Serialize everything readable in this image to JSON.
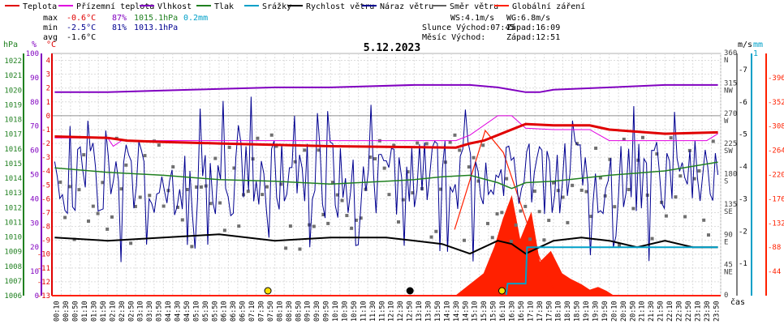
{
  "legend": [
    {
      "label": "Teplota",
      "color": "#e00000"
    },
    {
      "label": "Přízemní teplota",
      "color": "#e000e0"
    },
    {
      "label": "Vlhkost",
      "color": "#8000c0"
    },
    {
      "label": "Tlak",
      "color": "#208020"
    },
    {
      "label": "Srážky",
      "color": "#00a0c8"
    },
    {
      "label": "Rychlost větru",
      "color": "#000000"
    },
    {
      "label": "Náraz větru",
      "color": "#000090"
    },
    {
      "label": "Směr větru",
      "color": "#606060"
    },
    {
      "label": "Globální záření",
      "color": "#ff2000"
    }
  ],
  "stats": {
    "max": {
      "label": "max",
      "temp": "-0.6°C",
      "hum": "87%",
      "press": "1015.1hPa",
      "rain": "0.2mm"
    },
    "min": {
      "label": "min",
      "temp": "-2.5°C",
      "hum": "81%",
      "press": "1013.1hPa"
    },
    "avg": {
      "label": "avg",
      "temp": "-1.6°C"
    }
  },
  "info": {
    "ws": "WS:4.1m/s",
    "wg": "WG:6.8m/s",
    "sun": "Slunce Východ:07:45",
    "sun_set": "Západ:16:09",
    "moon": "Měsíc  Východ:",
    "moon_set": "Západ:12:51"
  },
  "title": "5.12.2023",
  "axes": {
    "hpa_unit": "hPa",
    "pct_unit": "%",
    "c_unit": "°C",
    "ms_unit": "m/s",
    "mm_unit": "mm",
    "cas_label": "čas",
    "hpa_ticks": [
      "1022",
      "1021",
      "1020",
      "1019",
      "1018",
      "1017",
      "1016",
      "1015",
      "1014",
      "1013",
      "1012",
      "1011",
      "1010",
      "1009",
      "1008",
      "1007",
      "1006"
    ],
    "pct_ticks": [
      "100",
      "90",
      "80",
      "70",
      "60",
      "50",
      "40",
      "30",
      "20",
      "10",
      "0"
    ],
    "c_ticks": [
      "4",
      "3",
      "2",
      "1",
      "0",
      "-1",
      "-2",
      "-3",
      "-4",
      "-5",
      "-6",
      "-7",
      "-8",
      "-9",
      "-10",
      "-11",
      "-12",
      "-13"
    ],
    "dir_ticks": [
      {
        "deg": "360",
        "name": "N"
      },
      {
        "deg": "315",
        "name": "NW"
      },
      {
        "deg": "270",
        "name": "W"
      },
      {
        "deg": "225",
        "name": "SW"
      },
      {
        "deg": "180",
        "name": "S"
      },
      {
        "deg": "135",
        "name": "SE"
      },
      {
        "deg": "90",
        "name": "E"
      },
      {
        "deg": "45",
        "name": "NE"
      },
      {
        "deg": "0",
        "name": ""
      }
    ],
    "ms_ticks": [
      "7",
      "6",
      "5",
      "4",
      "3",
      "2",
      "1"
    ],
    "mm_top": "1",
    "rad_ticks": [
      "396",
      "352",
      "308",
      "264",
      "220",
      "176",
      "132",
      "88",
      "44"
    ]
  },
  "chart_data": {
    "type": "line",
    "title": "5.12.2023",
    "x_labels": [
      "00:10",
      "00:30",
      "00:50",
      "01:10",
      "01:30",
      "01:50",
      "02:10",
      "02:30",
      "02:50",
      "03:10",
      "03:30",
      "03:50",
      "04:10",
      "04:30",
      "04:50",
      "05:10",
      "05:30",
      "05:50",
      "06:10",
      "06:30",
      "06:50",
      "07:10",
      "07:30",
      "07:50",
      "08:10",
      "08:30",
      "08:50",
      "09:10",
      "09:30",
      "09:50",
      "10:10",
      "10:30",
      "10:50",
      "11:10",
      "11:30",
      "11:50",
      "12:10",
      "12:30",
      "12:50",
      "13:10",
      "13:30",
      "13:50",
      "14:10",
      "14:30",
      "14:50",
      "15:10",
      "15:30",
      "15:50",
      "16:10",
      "16:30",
      "16:50",
      "17:10",
      "17:30",
      "17:50",
      "18:10",
      "18:30",
      "18:50",
      "19:10",
      "19:30",
      "19:50",
      "20:10",
      "20:30",
      "20:50",
      "21:10",
      "21:30",
      "21:50",
      "22:10",
      "22:30",
      "22:50",
      "23:10",
      "23:30",
      "23:50"
    ],
    "temperature_c": {
      "x": [
        0.1,
        2,
        2.7,
        4,
        6,
        10,
        14.5,
        15,
        15.5,
        16,
        17,
        18,
        19.3,
        20,
        22,
        23.9
      ],
      "y": [
        -1.5,
        -1.6,
        -1.8,
        -1.9,
        -2.0,
        -2.2,
        -2.3,
        -2.0,
        -1.8,
        -1.4,
        -0.6,
        -0.7,
        -0.7,
        -1.0,
        -1.3,
        -1.2
      ]
    },
    "ground_temp_c": {
      "x": [
        0.1,
        2,
        2.2,
        2.5,
        14.5,
        15,
        16,
        16.5,
        17,
        18,
        19.3,
        20,
        22,
        22.8,
        23,
        23.5,
        23.9
      ],
      "y": [
        -1.6,
        -1.6,
        -2.2,
        -1.8,
        -1.8,
        -1.4,
        0.0,
        0.0,
        -0.9,
        -1.0,
        -1.0,
        -1.8,
        -1.8,
        -1.8,
        -1.8,
        -1.8,
        -1.3
      ]
    },
    "humidity_pct": {
      "x": [
        0.1,
        2,
        5,
        8,
        10,
        13,
        15,
        16,
        17,
        17.5,
        18,
        20,
        22,
        23.9
      ],
      "y": [
        84,
        84,
        85,
        86,
        86,
        87,
        87,
        86,
        84,
        84,
        85,
        86,
        87,
        87
      ]
    },
    "pressure_hpa": {
      "x": [
        0.1,
        2,
        4,
        6,
        8,
        10,
        12,
        13,
        14,
        15,
        16,
        16.5,
        17,
        18,
        20,
        22,
        23.9
      ],
      "y": [
        1014.7,
        1014.4,
        1014.2,
        1013.9,
        1013.8,
        1013.6,
        1013.8,
        1013.9,
        1014.1,
        1014.2,
        1013.7,
        1013.3,
        1013.7,
        1013.8,
        1014.2,
        1014.5,
        1015.1
      ]
    },
    "rain_mm": {
      "x": [
        0.1,
        16.3,
        16.35,
        17.0,
        17.05,
        23.9
      ],
      "y": [
        0,
        0,
        0.05,
        0.05,
        0.2,
        0.2
      ]
    },
    "wind_speed_ms": {
      "x": [
        0.1,
        2,
        4,
        6,
        8,
        10,
        12,
        14,
        15,
        16,
        16.5,
        17,
        18,
        19,
        20,
        21,
        22,
        23,
        23.9
      ],
      "y": [
        1.8,
        1.7,
        1.8,
        1.9,
        1.7,
        1.8,
        1.8,
        1.6,
        1.3,
        1.7,
        1.6,
        1.3,
        1.7,
        1.8,
        1.7,
        1.5,
        1.7,
        1.5,
        1.5
      ]
    },
    "solar_radiation_wm2": {
      "x": [
        0.1,
        7.75,
        14.5,
        15.5,
        15.9,
        16.2,
        16.5,
        16.8,
        17.2,
        17.5,
        17.9,
        18.3,
        18.6,
        19.0,
        19.3,
        19.6,
        19.9,
        20.15,
        20.2,
        23.9
      ],
      "y": [
        0,
        0,
        0,
        40,
        90,
        140,
        180,
        100,
        150,
        60,
        80,
        40,
        30,
        20,
        10,
        15,
        8,
        0,
        0,
        0
      ]
    },
    "wind_dir_deg": {
      "summary": "scattered points mostly between 90 and 240 degrees"
    },
    "ylim": {
      "hpa": [
        1006,
        1022.5
      ],
      "pct": [
        0,
        100
      ],
      "c": [
        -13,
        4.5
      ],
      "deg": [
        0,
        360
      ],
      "ms": [
        0,
        7.5
      ],
      "mm": [
        0,
        1
      ],
      "rad": [
        0,
        440
      ]
    },
    "grid": true
  }
}
